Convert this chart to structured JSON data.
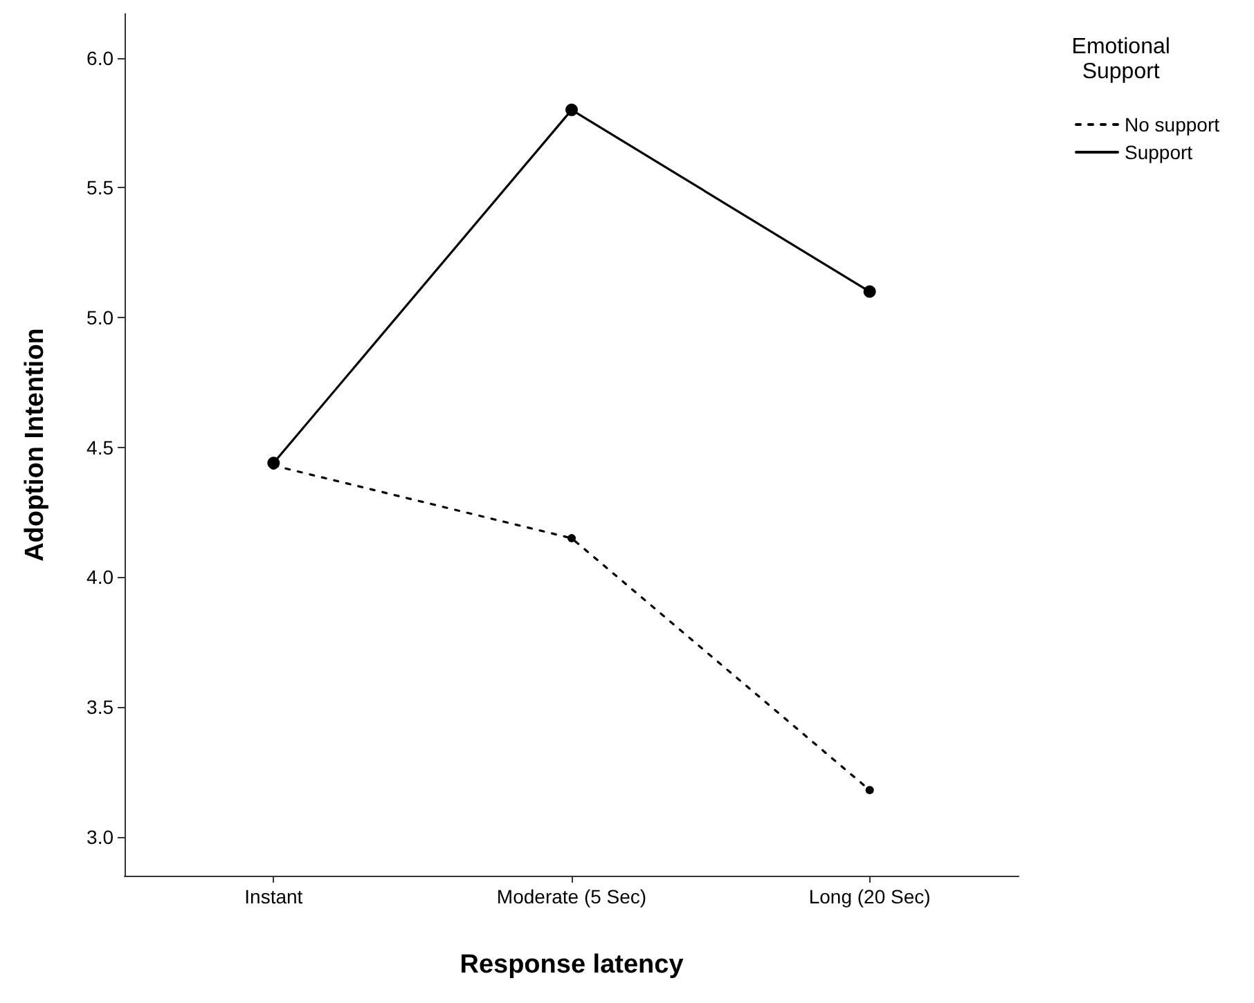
{
  "chart_data": {
    "type": "line",
    "xlabel": "Response latency",
    "ylabel": "Adoption Intention",
    "legend_title": "Emotional Support",
    "categories": [
      "Instant",
      "Moderate (5 Sec)",
      "Long (20 Sec)"
    ],
    "series": [
      {
        "name": "No support",
        "color": "#000000",
        "line_style": "dashed",
        "values": [
          4.43,
          4.15,
          3.18
        ]
      },
      {
        "name": "Support",
        "color": "#000000",
        "line_style": "solid",
        "values": [
          4.44,
          5.8,
          5.1
        ]
      }
    ],
    "ylim": [
      2.85,
      6.17
    ],
    "yticks": [
      {
        "value": 3,
        "label": "3.0"
      },
      {
        "value": 3.5,
        "label": "3.5"
      },
      {
        "value": 4,
        "label": "4.0"
      },
      {
        "value": 4.5,
        "label": "4.5"
      },
      {
        "value": 5,
        "label": "5.0"
      },
      {
        "value": 5.5,
        "label": "5.5"
      },
      {
        "value": 6,
        "label": "6.0"
      }
    ],
    "grid": false,
    "legend": "top right",
    "marker": "circle"
  }
}
